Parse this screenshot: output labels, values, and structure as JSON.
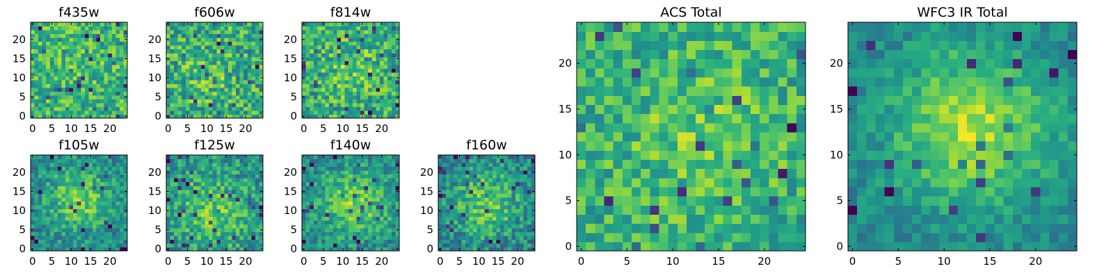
{
  "figure": {
    "background": "#ffffff",
    "colormap": "viridis",
    "colormap_stops": [
      "#440154",
      "#3b528b",
      "#21918c",
      "#5ec962",
      "#fde725"
    ]
  },
  "chart_data": [
    {
      "type": "heatmap",
      "title": "f435w",
      "grid_size": 25,
      "seed": 11,
      "center": [
        12,
        13
      ],
      "peak": 0.05,
      "noise": 0.22,
      "base": 0.66,
      "spread": 6,
      "xlim": [
        0,
        24
      ],
      "ylim": [
        0,
        24
      ],
      "xticks": [
        0,
        5,
        10,
        15,
        20
      ],
      "yticks": [
        0,
        5,
        10,
        15,
        20
      ]
    },
    {
      "type": "heatmap",
      "title": "f606w",
      "grid_size": 25,
      "seed": 23,
      "center": [
        10,
        10
      ],
      "peak": 0.08,
      "noise": 0.25,
      "base": 0.62,
      "spread": 6,
      "xlim": [
        0,
        24
      ],
      "ylim": [
        0,
        24
      ],
      "xticks": [
        0,
        5,
        10,
        15,
        20
      ],
      "yticks": [
        0,
        5,
        10,
        15,
        20
      ]
    },
    {
      "type": "heatmap",
      "title": "f814w",
      "grid_size": 25,
      "seed": 37,
      "center": [
        13,
        12
      ],
      "peak": 0.14,
      "noise": 0.24,
      "base": 0.62,
      "spread": 5,
      "xlim": [
        0,
        24
      ],
      "ylim": [
        0,
        24
      ],
      "xticks": [
        0,
        5,
        10,
        15,
        20
      ],
      "yticks": [
        0,
        5,
        10,
        15,
        20
      ]
    },
    {
      "type": "heatmap",
      "title": "f105w",
      "grid_size": 25,
      "seed": 41,
      "center": [
        12,
        13
      ],
      "peak": 0.32,
      "noise": 0.18,
      "base": 0.46,
      "spread": 6,
      "xlim": [
        0,
        24
      ],
      "ylim": [
        0,
        24
      ],
      "xticks": [
        0,
        5,
        10,
        15,
        20
      ],
      "yticks": [
        0,
        5,
        10,
        15,
        20
      ]
    },
    {
      "type": "heatmap",
      "title": "f125w",
      "grid_size": 25,
      "seed": 53,
      "center": [
        12,
        10
      ],
      "peak": 0.25,
      "noise": 0.2,
      "base": 0.5,
      "spread": 7,
      "xlim": [
        0,
        24
      ],
      "ylim": [
        0,
        24
      ],
      "xticks": [
        0,
        5,
        10,
        15,
        20
      ],
      "yticks": [
        0,
        5,
        10,
        15,
        20
      ]
    },
    {
      "type": "heatmap",
      "title": "f140w",
      "grid_size": 25,
      "seed": 67,
      "center": [
        13,
        12
      ],
      "peak": 0.32,
      "noise": 0.18,
      "base": 0.48,
      "spread": 6,
      "xlim": [
        0,
        24
      ],
      "ylim": [
        0,
        24
      ],
      "xticks": [
        0,
        5,
        10,
        15,
        20
      ],
      "yticks": [
        0,
        5,
        10,
        15,
        20
      ]
    },
    {
      "type": "heatmap",
      "title": "f160w",
      "grid_size": 25,
      "seed": 79,
      "center": [
        12,
        12
      ],
      "peak": 0.3,
      "noise": 0.2,
      "base": 0.46,
      "spread": 6,
      "xlim": [
        0,
        24
      ],
      "ylim": [
        0,
        24
      ],
      "xticks": [
        0,
        5,
        10,
        15,
        20
      ],
      "yticks": [
        0,
        5,
        10,
        15,
        20
      ]
    },
    {
      "type": "heatmap",
      "title": "ACS Total",
      "grid_size": 25,
      "seed": 97,
      "center": [
        13,
        12
      ],
      "peak": 0.14,
      "noise": 0.2,
      "base": 0.64,
      "spread": 5,
      "xlim": [
        0,
        24
      ],
      "ylim": [
        0,
        24
      ],
      "xticks": [
        0,
        5,
        10,
        15,
        20
      ],
      "yticks": [
        0,
        5,
        10,
        15,
        20
      ]
    },
    {
      "type": "heatmap",
      "title": "WFC3 IR Total",
      "grid_size": 25,
      "seed": 113,
      "center": [
        13,
        13
      ],
      "peak": 0.42,
      "noise": 0.12,
      "base": 0.46,
      "spread": 6,
      "xlim": [
        0,
        24
      ],
      "ylim": [
        0,
        24
      ],
      "xticks": [
        0,
        5,
        10,
        15,
        20
      ],
      "yticks": [
        0,
        5,
        10,
        15,
        20
      ]
    }
  ]
}
